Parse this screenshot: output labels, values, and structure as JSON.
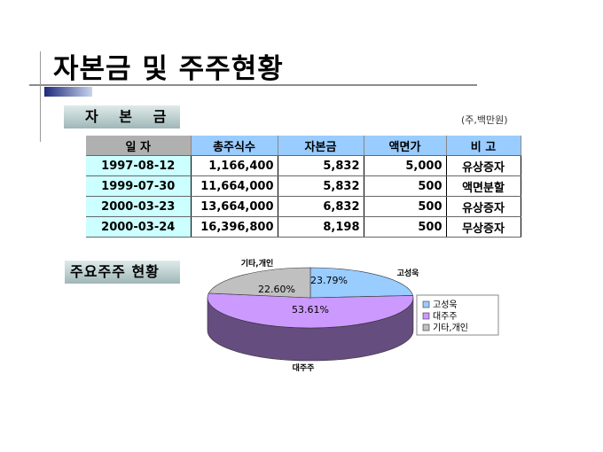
{
  "title": "자본금 및 주주현황",
  "capital": {
    "section_label": "자 본 금",
    "unit": "(주,백만원)",
    "headers": [
      "일 자",
      "총주식수",
      "자본금",
      "액면가",
      "비 고"
    ],
    "rows": [
      [
        "1997-08-12",
        "1,166,400",
        "5,832",
        "5,000",
        "유상증자"
      ],
      [
        "1999-07-30",
        "11,664,000",
        "5,832",
        "500",
        "액면분할"
      ],
      [
        "2000-03-23",
        "13,664,000",
        "6,832",
        "500",
        "유상증자"
      ],
      [
        "2000-03-24",
        "16,396,800",
        "8,198",
        "500",
        "무상증자"
      ]
    ]
  },
  "shareholders": {
    "section_label": "주요주주 현황"
  },
  "chart_data": {
    "type": "pie",
    "title": "",
    "labels": [
      "고성욱",
      "대주주",
      "기타,개인"
    ],
    "values": [
      23.79,
      53.61,
      22.6
    ],
    "data_labels": [
      "23.79%",
      "53.61%",
      "22.60%"
    ],
    "colors": [
      "#99ccff",
      "#cc99ff",
      "#c0c0c0"
    ],
    "side_colors": [
      "#5a7a99",
      "#664d80",
      "#777777"
    ],
    "legend_position": "right"
  }
}
